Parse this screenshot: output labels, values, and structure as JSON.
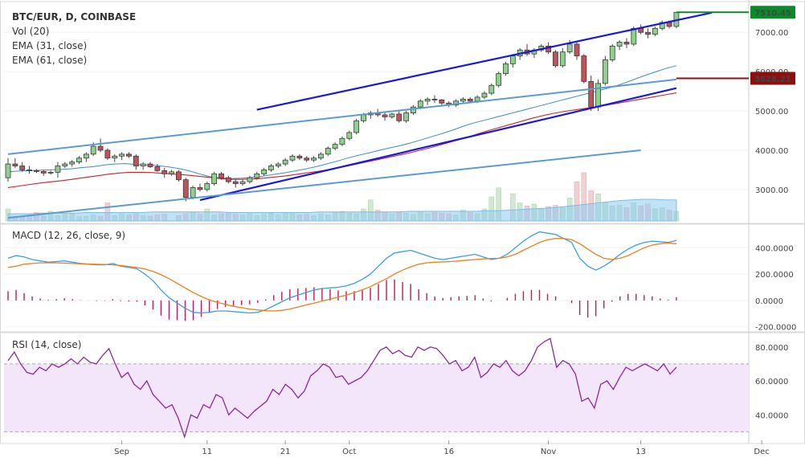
{
  "colors": {
    "up": "#5aa469",
    "down": "#c0525a",
    "ema_fast": "#3a8cc8",
    "ema_slow": "#cc2222",
    "channel": "#1a1ad6",
    "trend": "#5b9bd5",
    "vol_up": "#cfe8cf",
    "vol_down": "#f0d0d0",
    "vol_ma": "#8ec8ee",
    "macd_line": "#3a9ee8",
    "macd_signal": "#f07d20",
    "macd_hist": "#c4175c",
    "rsi_line": "#8a2a9a",
    "rsi_band": "#f3e6fb",
    "last_price_tag": "#0a8a2a",
    "level_tag": "#8a1010"
  },
  "chart_data": [
    {
      "type": "candlestick",
      "title": "BTC/EUR, D, COINBASE",
      "legend": [
        "Vol (20)",
        "EMA (31, close)",
        "EMA (61, close)"
      ],
      "ylim": [
        2200,
        7700
      ],
      "y_ticks": [
        3000,
        4000,
        5000,
        6000,
        7000
      ],
      "y_tick_labels": [
        "3000.00",
        "4000.00",
        "5000.00",
        "6000.00",
        "7000.00"
      ],
      "x_ticks": [
        "Sep",
        "11",
        "21",
        "Oct",
        "16",
        "Nov",
        "13",
        "Dec"
      ],
      "price_tags": [
        {
          "label": "7510.45",
          "value": 7510.45,
          "kind": "last"
        },
        {
          "label": "5828.21",
          "value": 5828.21,
          "kind": "level"
        }
      ],
      "ohlc": [
        [
          3300,
          3800,
          3200,
          3650
        ],
        [
          3650,
          3800,
          3550,
          3600
        ],
        [
          3600,
          3700,
          3450,
          3500
        ],
        [
          3500,
          3600,
          3400,
          3480
        ],
        [
          3480,
          3520,
          3420,
          3460
        ],
        [
          3460,
          3500,
          3350,
          3420
        ],
        [
          3420,
          3480,
          3380,
          3440
        ],
        [
          3440,
          3700,
          3300,
          3600
        ],
        [
          3600,
          3700,
          3550,
          3650
        ],
        [
          3650,
          3750,
          3580,
          3700
        ],
        [
          3700,
          3850,
          3650,
          3800
        ],
        [
          3800,
          3950,
          3700,
          3900
        ],
        [
          3900,
          4200,
          3850,
          4100
        ],
        [
          4100,
          4300,
          3950,
          4000
        ],
        [
          4000,
          4050,
          3750,
          3800
        ],
        [
          3800,
          3900,
          3700,
          3850
        ],
        [
          3850,
          3950,
          3750,
          3900
        ],
        [
          3900,
          3950,
          3800,
          3850
        ],
        [
          3850,
          3900,
          3500,
          3600
        ],
        [
          3600,
          3700,
          3500,
          3650
        ],
        [
          3650,
          3700,
          3550,
          3580
        ],
        [
          3580,
          3650,
          3450,
          3480
        ],
        [
          3480,
          3550,
          3300,
          3400
        ],
        [
          3400,
          3500,
          3350,
          3450
        ],
        [
          3450,
          3500,
          3200,
          3250
        ],
        [
          3250,
          3300,
          2700,
          2800
        ],
        [
          2800,
          3100,
          2750,
          3050
        ],
        [
          3050,
          3150,
          2950,
          3000
        ],
        [
          3000,
          3200,
          2950,
          3150
        ],
        [
          3150,
          3450,
          3100,
          3400
        ],
        [
          3400,
          3450,
          3250,
          3300
        ],
        [
          3300,
          3350,
          3150,
          3200
        ],
        [
          3200,
          3250,
          3050,
          3150
        ],
        [
          3150,
          3250,
          3100,
          3200
        ],
        [
          3200,
          3350,
          3150,
          3300
        ],
        [
          3300,
          3450,
          3250,
          3400
        ],
        [
          3400,
          3550,
          3350,
          3500
        ],
        [
          3500,
          3650,
          3450,
          3600
        ],
        [
          3600,
          3700,
          3550,
          3650
        ],
        [
          3650,
          3800,
          3600,
          3750
        ],
        [
          3750,
          3900,
          3700,
          3850
        ],
        [
          3850,
          3900,
          3750,
          3800
        ],
        [
          3800,
          3850,
          3700,
          3750
        ],
        [
          3750,
          3850,
          3700,
          3800
        ],
        [
          3800,
          3950,
          3750,
          3900
        ],
        [
          3900,
          4100,
          3850,
          4050
        ],
        [
          4050,
          4200,
          4000,
          4150
        ],
        [
          4150,
          4350,
          4100,
          4300
        ],
        [
          4300,
          4500,
          4250,
          4450
        ],
        [
          4450,
          4800,
          4400,
          4750
        ],
        [
          4750,
          4950,
          4700,
          4900
        ],
        [
          4900,
          5000,
          4800,
          4950
        ],
        [
          4950,
          5050,
          4850,
          4900
        ],
        [
          4900,
          4950,
          4750,
          4850
        ],
        [
          4850,
          4950,
          4800,
          4920
        ],
        [
          4920,
          5000,
          4700,
          4750
        ],
        [
          4750,
          5000,
          4700,
          4950
        ],
        [
          4950,
          5150,
          4900,
          5100
        ],
        [
          5100,
          5300,
          5050,
          5250
        ],
        [
          5250,
          5350,
          5150,
          5300
        ],
        [
          5300,
          5400,
          5200,
          5280
        ],
        [
          5280,
          5300,
          5150,
          5200
        ],
        [
          5200,
          5250,
          5100,
          5150
        ],
        [
          5150,
          5300,
          5100,
          5250
        ],
        [
          5250,
          5350,
          5200,
          5300
        ],
        [
          5300,
          5350,
          5200,
          5250
        ],
        [
          5250,
          5400,
          5200,
          5350
        ],
        [
          5350,
          5500,
          5300,
          5450
        ],
        [
          5450,
          5700,
          5400,
          5650
        ],
        [
          5650,
          6000,
          5600,
          5950
        ],
        [
          5950,
          6250,
          5900,
          6200
        ],
        [
          6200,
          6450,
          6100,
          6400
        ],
        [
          6400,
          6600,
          6300,
          6550
        ],
        [
          6550,
          6700,
          6400,
          6450
        ],
        [
          6450,
          6600,
          6350,
          6550
        ],
        [
          6550,
          6700,
          6500,
          6650
        ],
        [
          6650,
          6750,
          6450,
          6500
        ],
        [
          6500,
          6550,
          6100,
          6150
        ],
        [
          6150,
          6600,
          6100,
          6500
        ],
        [
          6500,
          6800,
          6450,
          6700
        ],
        [
          6700,
          6750,
          6300,
          6400
        ],
        [
          6400,
          6450,
          5700,
          5750
        ],
        [
          5750,
          5900,
          5000,
          5100
        ],
        [
          5100,
          5800,
          5000,
          5700
        ],
        [
          5700,
          6400,
          5650,
          6300
        ],
        [
          6300,
          6700,
          6250,
          6650
        ],
        [
          6650,
          6800,
          6550,
          6750
        ],
        [
          6750,
          6850,
          6600,
          6700
        ],
        [
          6700,
          7150,
          6650,
          7100
        ],
        [
          7100,
          7200,
          6950,
          7000
        ],
        [
          7000,
          7100,
          6850,
          6950
        ],
        [
          6950,
          7150,
          6900,
          7100
        ],
        [
          7100,
          7300,
          7050,
          7250
        ],
        [
          7250,
          7300,
          7100,
          7150
        ],
        [
          7150,
          7520,
          7100,
          7510
        ]
      ],
      "ema_31": [
        3450,
        3470,
        3480,
        3490,
        3500,
        3510,
        3530,
        3560,
        3580,
        3620,
        3650,
        3660,
        3640,
        3630,
        3610,
        3580,
        3540,
        3480,
        3400,
        3330,
        3300,
        3280,
        3290,
        3310,
        3340,
        3380,
        3420,
        3470,
        3520,
        3580,
        3650,
        3720,
        3800,
        3870,
        3930,
        4000,
        4060,
        4120,
        4190,
        4270,
        4350,
        4430,
        4520,
        4620,
        4700,
        4770,
        4840,
        4910,
        4980,
        5050,
        5120,
        5190,
        5260,
        5330,
        5400,
        5470,
        5540,
        5610,
        5700,
        5800,
        5900,
        5990,
        6080,
        6150
      ],
      "ema_61": [
        3050,
        3090,
        3130,
        3170,
        3200,
        3230,
        3270,
        3310,
        3350,
        3390,
        3420,
        3440,
        3440,
        3430,
        3410,
        3390,
        3370,
        3340,
        3310,
        3280,
        3260,
        3260,
        3270,
        3290,
        3320,
        3350,
        3390,
        3430,
        3470,
        3520,
        3570,
        3630,
        3690,
        3750,
        3810,
        3870,
        3930,
        4000,
        4070,
        4150,
        4230,
        4310,
        4400,
        4490,
        4570,
        4650,
        4730,
        4810,
        4880,
        4940,
        4990,
        5030,
        5070,
        5110,
        5160,
        5210,
        5260,
        5310,
        5360,
        5410,
        5460
      ],
      "volume": [
        20,
        8,
        6,
        10,
        14,
        8,
        16,
        9,
        11,
        12,
        7,
        8,
        10,
        8,
        30,
        9,
        12,
        10,
        12,
        9,
        8,
        10,
        11,
        9,
        12,
        14,
        11,
        20,
        10,
        12,
        14,
        11,
        10,
        12,
        9,
        11,
        13,
        10,
        14,
        12,
        10,
        11,
        9,
        12,
        10,
        14,
        16,
        13,
        12,
        20,
        35,
        18,
        14,
        12,
        15,
        13,
        11,
        16,
        12,
        14,
        13,
        12,
        10,
        18,
        14,
        12,
        20,
        40,
        55,
        45,
        30,
        25,
        28,
        20,
        24,
        26,
        22,
        38,
        65,
        80,
        50,
        45,
        30,
        25,
        26,
        22,
        30,
        25,
        28,
        20,
        22,
        18,
        16
      ],
      "volume_ma": [
        12,
        12,
        12,
        13,
        13,
        13,
        13,
        14,
        14,
        14,
        14,
        14,
        14,
        15,
        15,
        15,
        15,
        15,
        15,
        15,
        14,
        14,
        14,
        14,
        14,
        14,
        14,
        14,
        15,
        15,
        15,
        15,
        15,
        15,
        15,
        15,
        16,
        16,
        16,
        16,
        16,
        16,
        16,
        17,
        17,
        18,
        19,
        20,
        21,
        22,
        24,
        26,
        28,
        30,
        32,
        34,
        35,
        36,
        36,
        35,
        35
      ]
    },
    {
      "type": "line",
      "title": "MACD (12, 26, close, 9)",
      "ylim": [
        -220,
        560
      ],
      "y_ticks": [
        -200,
        0,
        200,
        400
      ],
      "y_tick_labels": [
        "-200.0000",
        "0.0000",
        "200.0000",
        "400.0000"
      ],
      "series": [
        {
          "name": "MACD",
          "values": [
            320,
            340,
            330,
            310,
            300,
            290,
            295,
            300,
            290,
            280,
            275,
            270,
            270,
            280,
            260,
            250,
            240,
            200,
            150,
            80,
            20,
            -20,
            -60,
            -90,
            -95,
            -90,
            -80,
            -80,
            -85,
            -90,
            -95,
            -90,
            -70,
            -40,
            -10,
            20,
            40,
            60,
            80,
            90,
            95,
            100,
            110,
            130,
            160,
            200,
            260,
            320,
            360,
            370,
            380,
            360,
            340,
            320,
            310,
            320,
            330,
            340,
            350,
            330,
            310,
            320,
            350,
            400,
            450,
            490,
            520,
            510,
            500,
            470,
            440,
            320,
            260,
            230,
            260,
            300,
            350,
            390,
            420,
            440,
            450,
            445,
            440,
            455
          ]
        },
        {
          "name": "Signal",
          "values": [
            250,
            260,
            275,
            280,
            285,
            285,
            285,
            283,
            280,
            278,
            276,
            274,
            273,
            270,
            265,
            258,
            250,
            238,
            220,
            195,
            165,
            130,
            95,
            60,
            30,
            5,
            -15,
            -30,
            -45,
            -55,
            -65,
            -72,
            -78,
            -80,
            -75,
            -65,
            -50,
            -35,
            -20,
            -5,
            10,
            25,
            40,
            60,
            80,
            105,
            135,
            165,
            200,
            230,
            255,
            275,
            285,
            290,
            292,
            295,
            300,
            305,
            310,
            315,
            318,
            320,
            330,
            350,
            380,
            410,
            440,
            460,
            470,
            470,
            460,
            430,
            390,
            350,
            320,
            310,
            320,
            340,
            370,
            400,
            420,
            430,
            435,
            430
          ]
        },
        {
          "name": "Histogram",
          "values": [
            70,
            80,
            55,
            30,
            15,
            5,
            10,
            17,
            10,
            2,
            -1,
            -4,
            -3,
            10,
            -5,
            -8,
            -10,
            -38,
            -70,
            -115,
            -145,
            -150,
            -155,
            -150,
            -125,
            -95,
            -65,
            -50,
            -40,
            -35,
            -30,
            -18,
            8,
            40,
            65,
            85,
            90,
            95,
            100,
            95,
            85,
            75,
            70,
            70,
            80,
            95,
            125,
            155,
            160,
            140,
            125,
            85,
            55,
            30,
            18,
            25,
            30,
            35,
            40,
            15,
            -8,
            0,
            20,
            50,
            70,
            80,
            80,
            50,
            30,
            0,
            -20,
            -110,
            -130,
            -120,
            -60,
            -10,
            30,
            50,
            50,
            40,
            30,
            15,
            5,
            25
          ]
        }
      ]
    },
    {
      "type": "line",
      "title": "RSI (14, close)",
      "ylim": [
        25,
        87
      ],
      "y_ticks": [
        40,
        60,
        80
      ],
      "y_tick_labels": [
        "40.0000",
        "60.0000",
        "80.0000"
      ],
      "bands": [
        30,
        70
      ],
      "series": [
        {
          "name": "RSI",
          "values": [
            72,
            77,
            70,
            65,
            64,
            68,
            66,
            70,
            68,
            70,
            73,
            70,
            74,
            71,
            70,
            75,
            79,
            70,
            62,
            65,
            58,
            55,
            60,
            52,
            48,
            44,
            46,
            38,
            27,
            40,
            38,
            46,
            44,
            52,
            50,
            40,
            44,
            41,
            38,
            42,
            45,
            48,
            55,
            52,
            58,
            55,
            50,
            54,
            63,
            66,
            70,
            68,
            62,
            63,
            58,
            60,
            62,
            66,
            72,
            78,
            80,
            76,
            78,
            75,
            74,
            80,
            78,
            80,
            79,
            75,
            70,
            72,
            66,
            68,
            74,
            62,
            65,
            70,
            68,
            72,
            66,
            63,
            66,
            72,
            80,
            83,
            85,
            68,
            72,
            70,
            64,
            48,
            50,
            44,
            58,
            60,
            55,
            62,
            68,
            66,
            68,
            70,
            68,
            66,
            70,
            64,
            68
          ]
        }
      ]
    }
  ]
}
